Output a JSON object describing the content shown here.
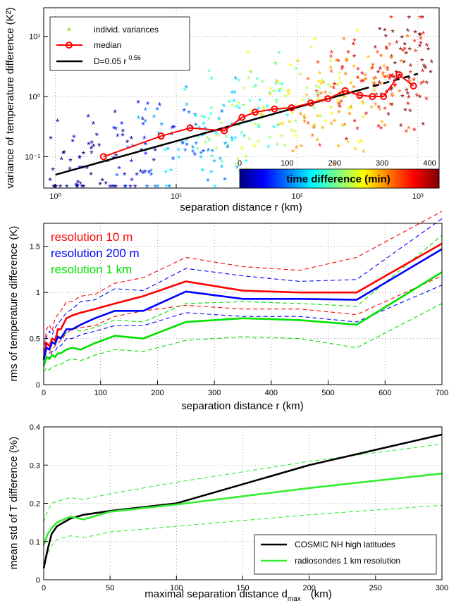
{
  "chart_data": [
    {
      "type": "scatter",
      "xscale": "log",
      "yscale": "log",
      "xlim": [
        0.8,
        1500
      ],
      "ylim": [
        0.03,
        30
      ],
      "xlabel": "separation distance r (km)",
      "ylabel": "variance of temperature difference (K²)",
      "xtick_labels": [
        "10⁰",
        "10¹",
        "10²",
        "10³"
      ],
      "ytick_labels": [
        "10⁻¹",
        "10⁰",
        "10¹"
      ],
      "legend": {
        "position": "top-left",
        "scatter_label": "individ. variances",
        "median_label": "median",
        "fit_label": "D=0.05 r",
        "fit_exponent": "0.56"
      },
      "colorbar": {
        "label": "time difference (min)",
        "tick_labels": [
          "0",
          "100",
          "200",
          "300",
          "400"
        ],
        "range": [
          0,
          420
        ],
        "colors": [
          "#00007f",
          "#0000ff",
          "#00ffff",
          "#ffff00",
          "#ff0000",
          "#7f0000"
        ]
      },
      "median": {
        "x": [
          2.5,
          7.5,
          13,
          25,
          35,
          45,
          65,
          90,
          130,
          180,
          250,
          330,
          420,
          520,
          700,
          920
        ],
        "y": [
          0.1,
          0.22,
          0.3,
          0.27,
          0.45,
          0.55,
          0.62,
          0.65,
          0.78,
          0.92,
          1.25,
          1.05,
          1.0,
          1.0,
          2.3,
          1.5
        ],
        "color": "#ff0000"
      },
      "fit": {
        "a": 0.05,
        "b": 0.56,
        "x_solid": [
          1,
          350
        ],
        "x_dashed": [
          350,
          1000
        ],
        "color": "#000000"
      }
    },
    {
      "type": "line",
      "xlim": [
        0,
        700
      ],
      "ylim": [
        0,
        1.75
      ],
      "xticks": [
        0,
        100,
        200,
        300,
        400,
        500,
        600,
        700
      ],
      "yticks": [
        0,
        0.5,
        1,
        1.5
      ],
      "xlabel": "separation distance r (km)",
      "ylabel": "rms of temperature difference (K)",
      "legend_position": "top-left",
      "series": [
        {
          "name": "resolution 10 m",
          "color": "#ff0000",
          "x": [
            0,
            5,
            10,
            15,
            20,
            25,
            30,
            40,
            50,
            65,
            90,
            125,
            175,
            250,
            350,
            450,
            550,
            700
          ],
          "y": [
            0.28,
            0.45,
            0.42,
            0.5,
            0.48,
            0.6,
            0.6,
            0.72,
            0.75,
            0.78,
            0.82,
            0.88,
            0.96,
            1.12,
            1.02,
            1.0,
            1.0,
            1.53
          ],
          "upper": [
            0.36,
            0.6,
            0.65,
            0.58,
            0.72,
            0.76,
            0.8,
            0.9,
            0.9,
            0.96,
            0.98,
            1.1,
            1.16,
            1.38,
            1.28,
            1.24,
            1.38,
            1.88
          ],
          "lower": [
            0.2,
            0.32,
            0.34,
            0.38,
            0.42,
            0.45,
            0.48,
            0.56,
            0.6,
            0.62,
            0.64,
            0.74,
            0.8,
            0.86,
            0.82,
            0.82,
            0.76,
            1.18
          ]
        },
        {
          "name": "resolution 200 m",
          "color": "#0000ff",
          "x": [
            0,
            5,
            10,
            15,
            20,
            25,
            30,
            40,
            50,
            65,
            90,
            125,
            175,
            250,
            350,
            450,
            550,
            700
          ],
          "y": [
            0.27,
            0.4,
            0.38,
            0.46,
            0.44,
            0.52,
            0.5,
            0.6,
            0.6,
            0.65,
            0.72,
            0.8,
            0.8,
            1.01,
            0.93,
            0.93,
            0.92,
            1.47
          ],
          "upper": [
            0.34,
            0.52,
            0.58,
            0.54,
            0.62,
            0.66,
            0.7,
            0.78,
            0.82,
            0.9,
            0.92,
            1.04,
            1.02,
            1.26,
            1.18,
            1.12,
            1.14,
            1.8
          ],
          "lower": [
            0.2,
            0.28,
            0.3,
            0.36,
            0.36,
            0.42,
            0.42,
            0.5,
            0.5,
            0.54,
            0.58,
            0.64,
            0.64,
            0.78,
            0.74,
            0.74,
            0.68,
            1.08
          ]
        },
        {
          "name": "resolution 1 km",
          "color": "#00e000",
          "x": [
            0,
            5,
            10,
            15,
            20,
            25,
            30,
            40,
            50,
            65,
            90,
            125,
            175,
            250,
            350,
            450,
            550,
            700
          ],
          "y": [
            0.2,
            0.3,
            0.28,
            0.32,
            0.3,
            0.34,
            0.34,
            0.38,
            0.4,
            0.38,
            0.45,
            0.53,
            0.5,
            0.68,
            0.72,
            0.7,
            0.65,
            1.22
          ],
          "upper": [
            0.26,
            0.44,
            0.42,
            0.48,
            0.46,
            0.5,
            0.52,
            0.56,
            0.6,
            0.58,
            0.62,
            0.7,
            0.68,
            0.88,
            0.9,
            0.88,
            0.85,
            1.62
          ],
          "lower": [
            0.14,
            0.18,
            0.16,
            0.2,
            0.2,
            0.22,
            0.22,
            0.26,
            0.28,
            0.26,
            0.32,
            0.38,
            0.36,
            0.48,
            0.52,
            0.5,
            0.4,
            0.88
          ]
        }
      ]
    },
    {
      "type": "line",
      "xlim": [
        0,
        300
      ],
      "ylim": [
        0,
        0.4
      ],
      "xticks": [
        0,
        50,
        100,
        150,
        200,
        250,
        300
      ],
      "yticks": [
        0,
        0.1,
        0.2,
        0.3,
        0.4
      ],
      "xlabel": "maximal separation distance d",
      "xlabel_sub": "max",
      "xlabel_unit": "(km)",
      "ylabel": "mean std of T difference (%)",
      "legend_position": "bottom-right",
      "series": [
        {
          "name": "COSMIC NH high latitudes",
          "color": "#000000",
          "x": [
            0,
            3,
            6,
            10,
            20,
            30,
            50,
            100,
            200,
            300
          ],
          "y": [
            0.03,
            0.08,
            0.12,
            0.14,
            0.16,
            0.17,
            0.18,
            0.2,
            0.3,
            0.38
          ]
        },
        {
          "name": "radiosondes 1 km resolution",
          "color": "#33ee33",
          "x": [
            0,
            3,
            6,
            10,
            20,
            30,
            50,
            100,
            200,
            300
          ],
          "y": [
            0.09,
            0.12,
            0.135,
            0.15,
            0.165,
            0.158,
            0.178,
            0.197,
            0.24,
            0.278
          ],
          "upper": [
            0.15,
            0.18,
            0.2,
            0.205,
            0.215,
            0.21,
            0.225,
            0.255,
            0.31,
            0.355
          ],
          "lower": [
            0.035,
            0.07,
            0.09,
            0.105,
            0.115,
            0.11,
            0.125,
            0.14,
            0.17,
            0.195
          ]
        }
      ]
    }
  ]
}
